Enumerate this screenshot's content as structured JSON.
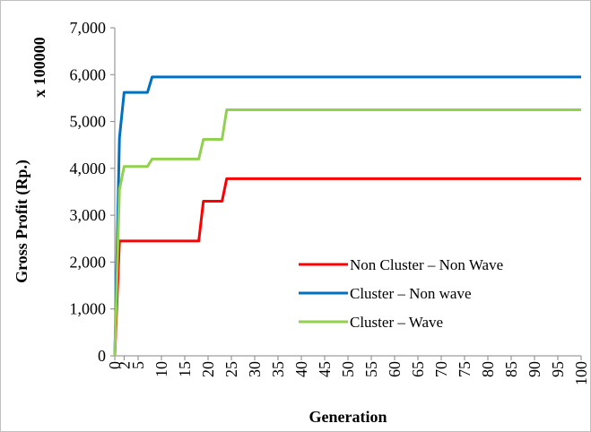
{
  "chart_data": {
    "type": "line",
    "title": "",
    "xlabel": "Generation",
    "ylabel": "Gross Profit (Rp.)",
    "y_multiplier_label": "x 100000",
    "xlim": [
      0,
      100
    ],
    "ylim": [
      0,
      7000
    ],
    "x_ticks": [
      0,
      2,
      5,
      10,
      15,
      20,
      25,
      30,
      35,
      40,
      45,
      50,
      55,
      60,
      65,
      70,
      75,
      80,
      85,
      90,
      95,
      100
    ],
    "y_ticks": [
      0,
      1000,
      2000,
      3000,
      4000,
      5000,
      6000,
      7000
    ],
    "y_tick_labels": [
      "0",
      "1,000",
      "2,000",
      "3,000",
      "4,000",
      "5,000",
      "6,000",
      "7,000"
    ],
    "grid": false,
    "legend_position": "bottom-right",
    "series": [
      {
        "name": "Non Cluster – Non Wave",
        "color": "#ff0000",
        "points": [
          [
            0,
            0
          ],
          [
            1,
            2450
          ],
          [
            18,
            2450
          ],
          [
            19,
            3300
          ],
          [
            23,
            3300
          ],
          [
            24,
            3780
          ],
          [
            100,
            3780
          ]
        ]
      },
      {
        "name": "Cluster – Non wave",
        "color": "#0070c0",
        "points": [
          [
            0,
            0
          ],
          [
            1,
            4650
          ],
          [
            2,
            5620
          ],
          [
            7,
            5620
          ],
          [
            8,
            5950
          ],
          [
            100,
            5950
          ]
        ]
      },
      {
        "name": "Cluster – Wave",
        "color": "#92d050",
        "points": [
          [
            0,
            0
          ],
          [
            1,
            3550
          ],
          [
            2,
            4040
          ],
          [
            7,
            4040
          ],
          [
            8,
            4200
          ],
          [
            18,
            4200
          ],
          [
            19,
            4620
          ],
          [
            23,
            4620
          ],
          [
            24,
            5250
          ],
          [
            100,
            5250
          ]
        ]
      }
    ]
  }
}
